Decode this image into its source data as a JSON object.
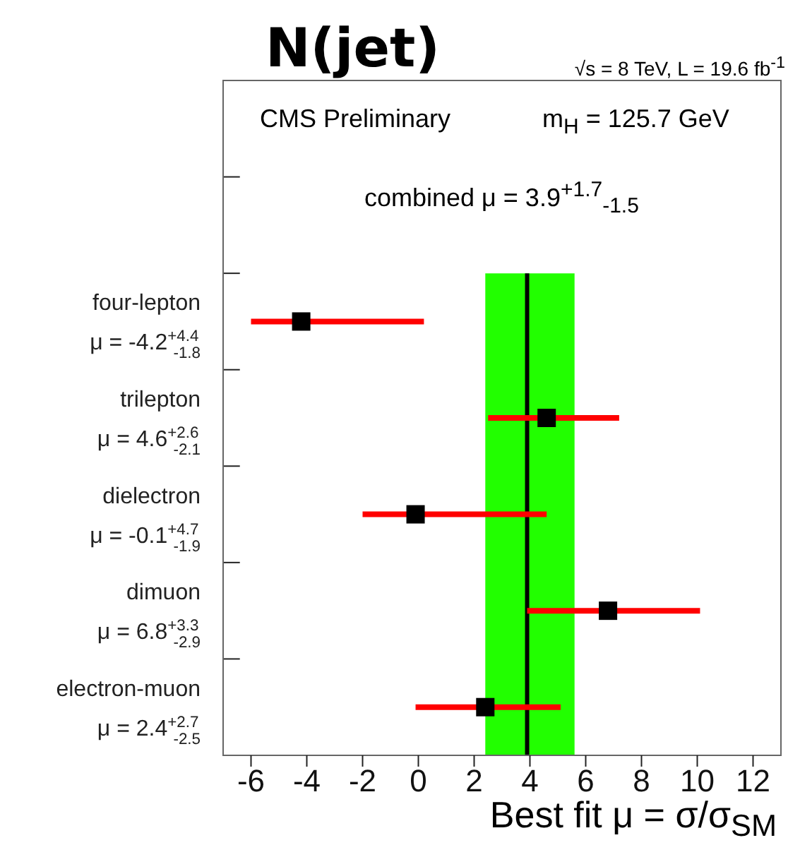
{
  "chart_data": {
    "type": "scatter",
    "title": "N(jet)",
    "subtitle": "√s = 8 TeV,  L = 19.6 fb$^{-1}$",
    "xlabel": "Best fit μ = σ/σ$_{SM}$",
    "annotations": [
      "CMS Preliminary",
      "m$_{H}$ = 125.7 GeV",
      "combined μ = 3.9$^{+1.7}$$_{-1.5}$"
    ],
    "orientation": "horizontal",
    "categories": [
      null,
      null,
      "four-lepton\nμ = -4.2$^{+4.4}$$_{-1.8}$",
      "trilepton\nμ = 4.6$^{+2.6}$$_{-2.1}$",
      "dielectron\nμ = -0.1$^{+4.7}$$_{-1.9}$",
      "dimuon\nμ = 6.8$^{+3.3}$$_{-2.9}$",
      "electron-muon\nμ = 2.4$^{+2.7}$$_{-2.5}$"
    ],
    "series": [
      {
        "color": "#000000",
        "values": [
          null,
          null,
          -4.2,
          4.6,
          -0.1,
          6.8,
          2.4
        ],
        "errors": [
          null,
          null,
          [
            -6.0,
            0.2
          ],
          [
            2.5,
            7.2
          ],
          [
            -2.0,
            4.6
          ],
          [
            3.9,
            10.1
          ],
          [
            -0.1,
            5.1
          ]
        ]
      }
    ],
    "marker": "square",
    "xlim": [
      -7,
      13
    ],
    "xticks": [
      -6,
      -4,
      -2,
      0,
      2,
      4,
      6,
      8,
      10,
      12
    ],
    "ref_lines": [
      {
        "axis": "x",
        "value": 3.9,
        "color": "#000000"
      }
    ],
    "bands": [
      {
        "axis": "x",
        "from": 2.4,
        "to": 5.6,
        "color": "#22ff00"
      }
    ],
    "grid": false,
    "legend": false
  }
}
